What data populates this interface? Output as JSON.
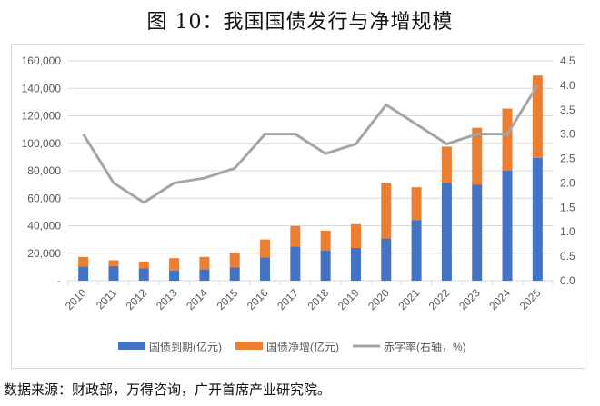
{
  "title": "图 10：我国国债发行与净增规模",
  "source": "数据来源：财政部，万得咨询，广开首席产业研究院。",
  "chart_data": {
    "type": "bar",
    "stacked": true,
    "title": "图 10：我国国债发行与净增规模",
    "categories": [
      "2010",
      "2011",
      "2012",
      "2013",
      "2014",
      "2015",
      "2016",
      "2017",
      "2018",
      "2019",
      "2020",
      "2021",
      "2022",
      "2023",
      "2024",
      "2025"
    ],
    "series": [
      {
        "name": "国债到期(亿元)",
        "type": "bar",
        "axis": "left",
        "color": "#4472C4",
        "values": [
          10200,
          10700,
          8900,
          7300,
          8200,
          9600,
          16900,
          24900,
          21800,
          23800,
          30700,
          44200,
          71300,
          70000,
          80000,
          89300
        ]
      },
      {
        "name": "国债净增(亿元)",
        "type": "bar",
        "axis": "left",
        "color": "#ED7D31",
        "values": [
          7100,
          4200,
          5100,
          9100,
          9100,
          10800,
          13100,
          14900,
          14600,
          17300,
          40600,
          23800,
          26300,
          41300,
          45300,
          60000
        ]
      },
      {
        "name": "赤字率(右轴，%)",
        "type": "line",
        "axis": "right",
        "color": "#A5A5A5",
        "values": [
          3.0,
          2.0,
          1.6,
          2.0,
          2.1,
          2.3,
          3.0,
          3.0,
          2.6,
          2.8,
          3.6,
          3.2,
          2.8,
          3.0,
          3.0,
          4.0
        ]
      }
    ],
    "ylim": [
      0,
      160000
    ],
    "y_ticks": [
      "-",
      "20,000",
      "40,000",
      "60,000",
      "80,000",
      "100,000",
      "120,000",
      "140,000",
      "160,000"
    ],
    "y2lim": [
      0,
      4.5
    ],
    "y2_ticks": [
      "0.0",
      "0.5",
      "1.0",
      "1.5",
      "2.0",
      "2.5",
      "3.0",
      "3.5",
      "4.0",
      "4.5"
    ],
    "grid": true,
    "legend": "bottom"
  }
}
